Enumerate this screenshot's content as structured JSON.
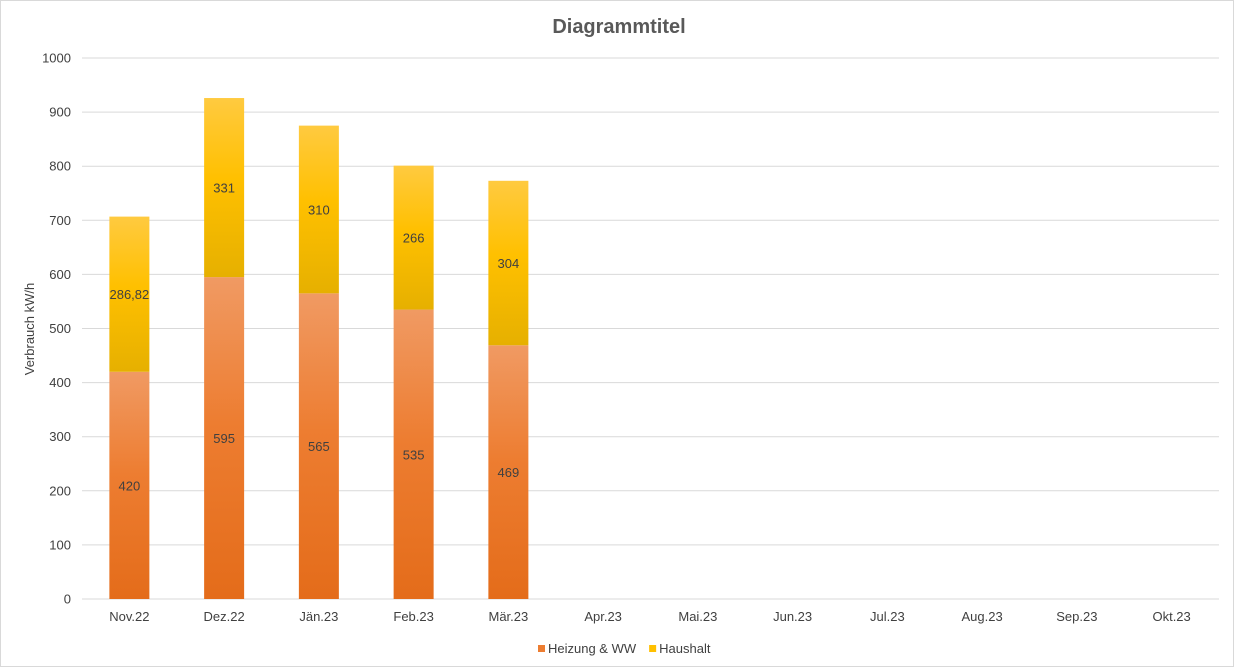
{
  "chart_data": {
    "type": "bar",
    "stacked": true,
    "title": "Diagrammtitel",
    "xlabel": "",
    "ylabel": "Verbrauch kW/h",
    "ylim": [
      0,
      1000
    ],
    "yticks": [
      "0",
      "100",
      "200",
      "300",
      "400",
      "500",
      "600",
      "700",
      "800",
      "900",
      "1000"
    ],
    "grid": true,
    "legend_position": "bottom",
    "categories": [
      "Nov.22",
      "Dez.22",
      "Jän.23",
      "Feb.23",
      "Mär.23",
      "Apr.23",
      "Mai.23",
      "Jun.23",
      "Jul.23",
      "Aug.23",
      "Sep.23",
      "Okt.23"
    ],
    "series": [
      {
        "name": "Heizung & WW",
        "color": "#ED7D31",
        "values": [
          420,
          595,
          565,
          535,
          469,
          null,
          null,
          null,
          null,
          null,
          null,
          null
        ],
        "labels": [
          "420",
          "595",
          "565",
          "535",
          "469",
          null,
          null,
          null,
          null,
          null,
          null,
          null
        ]
      },
      {
        "name": "Haushalt",
        "color": "#FFC000",
        "values": [
          286.82,
          331,
          310,
          266,
          304,
          null,
          null,
          null,
          null,
          null,
          null,
          null
        ],
        "labels": [
          "286,82",
          "331",
          "310",
          "266",
          "304",
          null,
          null,
          null,
          null,
          null,
          null,
          null
        ]
      }
    ]
  }
}
